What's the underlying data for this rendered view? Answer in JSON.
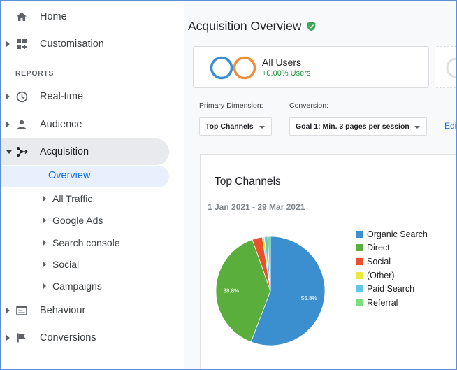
{
  "sidebar": {
    "home": "Home",
    "customisation": "Customisation",
    "reports_label": "REPORTS",
    "realtime": "Real-time",
    "audience": "Audience",
    "acquisition": "Acquisition",
    "overview": "Overview",
    "sub_items": [
      "All Traffic",
      "Google Ads",
      "Search console",
      "Social",
      "Campaigns"
    ],
    "behaviour": "Behaviour",
    "conversions": "Conversions"
  },
  "main": {
    "title": "Acquisition Overview",
    "metric": {
      "title": "All Users",
      "change": "+0.00% Users"
    },
    "primary_dimension_label": "Primary Dimension:",
    "primary_dimension_value": "Top Channels",
    "conversion_label": "Conversion:",
    "conversion_value": "Goal 1: Min. 3 pages per session",
    "edit_link": "Edi"
  },
  "chart_data": {
    "type": "pie",
    "title": "Top Channels",
    "subtitle": "1 Jan 2021 - 29 Mar 2021",
    "legend_position": "right",
    "slices": [
      {
        "name": "Organic Search",
        "value": 55.8,
        "label": "55.8%",
        "color": "#3b8fce"
      },
      {
        "name": "Direct",
        "value": 38.8,
        "label": "38.8%",
        "color": "#5aae3b"
      },
      {
        "name": "Social",
        "value": 3.0,
        "label": "",
        "color": "#e8512b"
      },
      {
        "name": "(Other)",
        "value": 0.6,
        "label": "",
        "color": "#e9e93a"
      },
      {
        "name": "Paid Search",
        "value": 1.0,
        "label": "",
        "color": "#5fc8e8"
      },
      {
        "name": "Referral",
        "value": 0.8,
        "label": "",
        "color": "#7be07b"
      }
    ]
  },
  "colors": {
    "accent": "#1a73e8",
    "positive": "#1e8e3e",
    "ring_blue": "#3b8fce",
    "ring_orange": "#ef8f3b",
    "check_green": "#34a853"
  }
}
